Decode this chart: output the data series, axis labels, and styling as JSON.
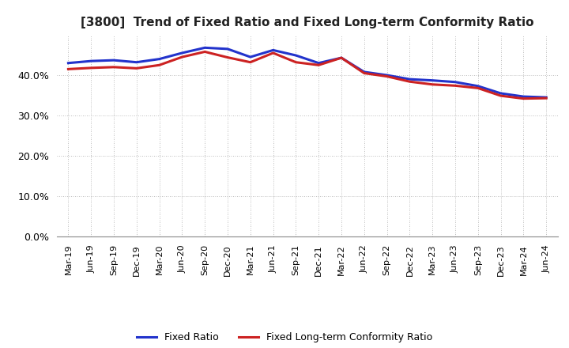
{
  "title": "[3800]  Trend of Fixed Ratio and Fixed Long-term Conformity Ratio",
  "xlabel": "",
  "ylabel": "",
  "ylim": [
    0.0,
    0.5
  ],
  "yticks": [
    0.0,
    0.1,
    0.2,
    0.3,
    0.4
  ],
  "background_color": "#ffffff",
  "plot_bg_color": "#ffffff",
  "grid_color": "#aaaaaa",
  "line_color_fixed": "#2233cc",
  "line_color_ltcr": "#cc2222",
  "line_width": 2.2,
  "legend_fixed": "Fixed Ratio",
  "legend_ltcr": "Fixed Long-term Conformity Ratio",
  "title_fontsize": 11,
  "title_color": "#222222",
  "x_labels": [
    "Mar-19",
    "Jun-19",
    "Sep-19",
    "Dec-19",
    "Mar-20",
    "Jun-20",
    "Sep-20",
    "Dec-20",
    "Mar-21",
    "Jun-21",
    "Sep-21",
    "Dec-21",
    "Mar-22",
    "Jun-22",
    "Sep-22",
    "Dec-22",
    "Mar-23",
    "Jun-23",
    "Sep-23",
    "Dec-23",
    "Mar-24",
    "Jun-24"
  ],
  "fixed_ratio": [
    0.43,
    0.435,
    0.437,
    0.432,
    0.44,
    0.455,
    0.468,
    0.465,
    0.445,
    0.462,
    0.449,
    0.43,
    0.443,
    0.408,
    0.4,
    0.39,
    0.387,
    0.383,
    0.373,
    0.355,
    0.347,
    0.345
  ],
  "fixed_ltcr": [
    0.415,
    0.418,
    0.42,
    0.417,
    0.425,
    0.445,
    0.458,
    0.444,
    0.432,
    0.455,
    0.432,
    0.425,
    0.443,
    0.405,
    0.397,
    0.384,
    0.377,
    0.374,
    0.368,
    0.349,
    0.342,
    0.343
  ]
}
